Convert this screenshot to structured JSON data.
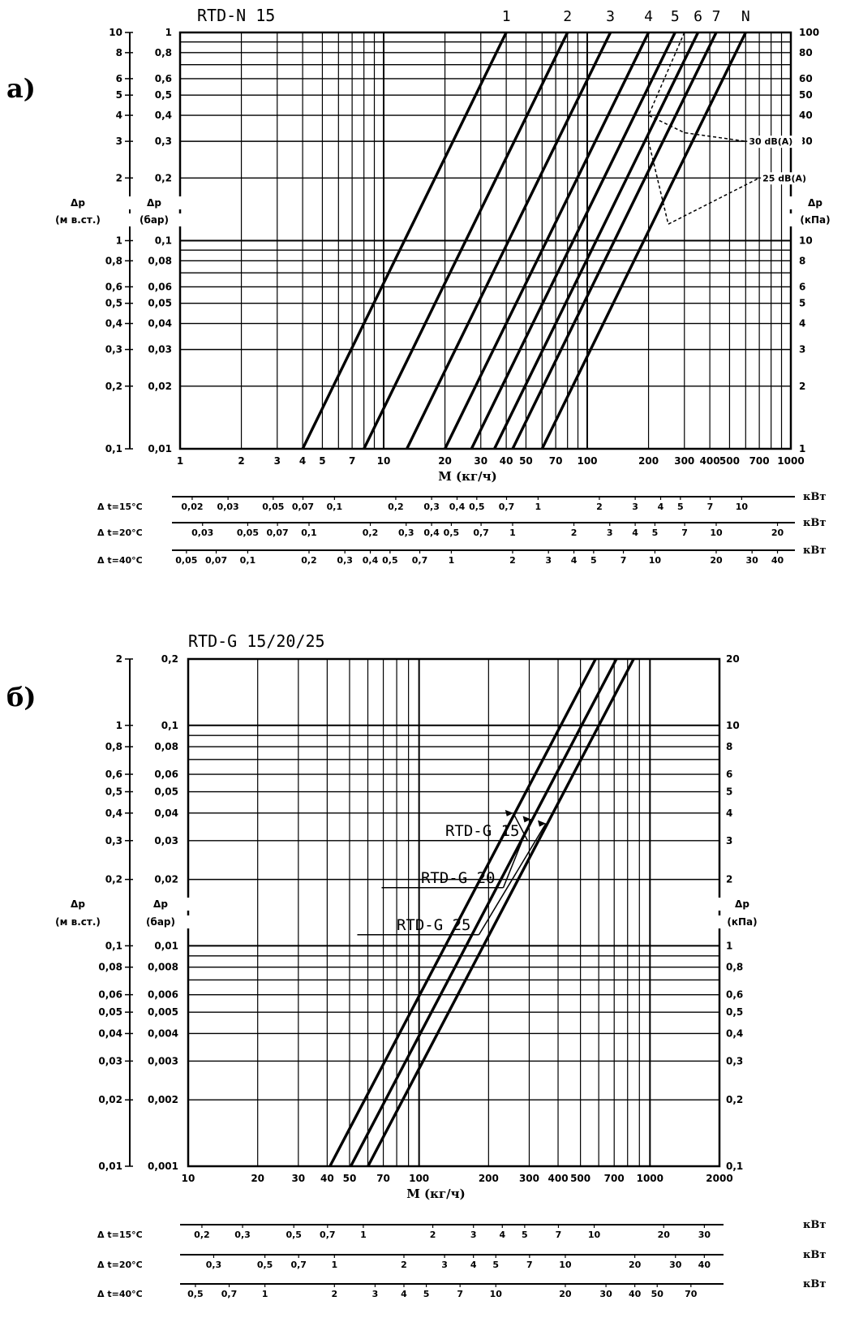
{
  "chart_data": [
    {
      "type": "line",
      "panel_letter": "а)",
      "title": "RTD-N 15",
      "xlabel": "M (кг/ч)",
      "x_scale": "log",
      "y_scale": "log",
      "xlim": [
        1,
        1000
      ],
      "ylim_bar": [
        0.01,
        1
      ],
      "x_ticks": [
        "1",
        "2",
        "3",
        "4",
        "5",
        "7",
        "10",
        "20",
        "30",
        "40",
        "50",
        "70",
        "100",
        "200",
        "300",
        "400",
        "500",
        "700",
        "1000"
      ],
      "y_left_m_label": [
        "Δp",
        "(м в.ст.)"
      ],
      "y_left_m_ticks": [
        "0,1",
        "0,2",
        "0,3",
        "0,4",
        "0,5",
        "0,6",
        "0,8",
        "1",
        "2",
        "3",
        "4",
        "5",
        "6",
        "8",
        "10"
      ],
      "y_left_bar_label": [
        "Δp",
        "(бар)"
      ],
      "y_left_bar_ticks": [
        "0,01",
        "0,02",
        "0,03",
        "0,04",
        "0,05",
        "0,06",
        "0,08",
        "0,1",
        "0,2",
        "0,3",
        "0,4",
        "0,5",
        "0,6",
        "0,8",
        "1"
      ],
      "y_right_label": [
        "Δp",
        "(кПа)"
      ],
      "y_right_ticks": [
        "1",
        "2",
        "3",
        "4",
        "5",
        "6",
        "8",
        "10",
        "20",
        "30",
        "40",
        "50",
        "60",
        "80",
        "100"
      ],
      "series": [
        {
          "name": "1",
          "kv": 0.04
        },
        {
          "name": "2",
          "kv": 0.08
        },
        {
          "name": "3",
          "kv": 0.13
        },
        {
          "name": "4",
          "kv": 0.2
        },
        {
          "name": "5",
          "kv": 0.27
        },
        {
          "name": "6",
          "kv": 0.35
        },
        {
          "name": "7",
          "kv": 0.43
        },
        {
          "name": "N",
          "kv": 0.6
        }
      ],
      "annotations": [
        "30 dB(A)",
        "25 dB(A)"
      ],
      "noise_30": [
        [
          300,
          1.0
        ],
        [
          200,
          0.4
        ],
        [
          300,
          0.33
        ],
        [
          600,
          0.3
        ]
      ],
      "noise_25": [
        [
          200,
          0.3
        ],
        [
          250,
          0.12
        ],
        [
          700,
          0.2
        ]
      ],
      "power_scales": [
        {
          "label": "Δ t=15°C",
          "unit": "кВт",
          "ticks": [
            "0,02",
            "0,03",
            "0,05",
            "0,07",
            "0,1",
            "0,2",
            "0,3",
            "0,4",
            "0,5",
            "0,7",
            "1",
            "2",
            "3",
            "4",
            "5",
            "7",
            "10"
          ],
          "kw_per_kgh": 0.01744
        },
        {
          "label": "Δ t=20°C",
          "unit": "кВт",
          "ticks": [
            "0,03",
            "0,05",
            "0,07",
            "0,1",
            "0,2",
            "0,3",
            "0,4",
            "0,5",
            "0,7",
            "1",
            "2",
            "3",
            "4",
            "5",
            "7",
            "10",
            "20"
          ],
          "kw_per_kgh": 0.02326
        },
        {
          "label": "Δ t=40°C",
          "unit": "кВт",
          "ticks": [
            "0,05",
            "0,07",
            "0,1",
            "0,2",
            "0,3",
            "0,4",
            "0,5",
            "0,7",
            "1",
            "2",
            "3",
            "4",
            "5",
            "7",
            "10",
            "20",
            "30",
            "40"
          ],
          "kw_per_kgh": 0.04652
        }
      ]
    },
    {
      "type": "line",
      "panel_letter": "б)",
      "title": "RTD-G 15/20/25",
      "xlabel": "M (кг/ч)",
      "x_scale": "log",
      "y_scale": "log",
      "xlim": [
        10,
        2000
      ],
      "ylim_bar": [
        0.001,
        0.2
      ],
      "x_ticks": [
        "10",
        "20",
        "30",
        "40",
        "50",
        "70",
        "100",
        "200",
        "300",
        "400",
        "500",
        "700",
        "1000",
        "2000"
      ],
      "y_left_m_label": [
        "Δp",
        "(м в.ст.)"
      ],
      "y_left_m_ticks": [
        "0,01",
        "0,02",
        "0,03",
        "0,04",
        "0,05",
        "0,06",
        "0,08",
        "0,1",
        "0,2",
        "0,3",
        "0,4",
        "0,5",
        "0,6",
        "0,8",
        "1",
        "2"
      ],
      "y_left_bar_label": [
        "Δp",
        "(бар)"
      ],
      "y_left_bar_ticks": [
        "0,001",
        "0,002",
        "0,003",
        "0,004",
        "0,005",
        "0,006",
        "0,008",
        "0,01",
        "0,02",
        "0,03",
        "0,04",
        "0,05",
        "0,06",
        "0,08",
        "0,1",
        "0,2"
      ],
      "y_right_label": [
        "Δp",
        "(кПа)"
      ],
      "y_right_ticks": [
        "0,1",
        "0,2",
        "0,3",
        "0,4",
        "0,5",
        "0,6",
        "0,8",
        "1",
        "2",
        "3",
        "4",
        "5",
        "6",
        "8",
        "10",
        "20"
      ],
      "series": [
        {
          "name": "RTD-G 15",
          "kv": 1.3
        },
        {
          "name": "RTD-G 20",
          "kv": 1.6
        },
        {
          "name": "RTD-G 25",
          "kv": 1.9
        }
      ],
      "power_scales": [
        {
          "label": "Δ t=15°C",
          "unit": "кВт",
          "ticks": [
            "0,2",
            "0,3",
            "0,5",
            "0,7",
            "1",
            "2",
            "3",
            "4",
            "5",
            "7",
            "10",
            "20",
            "30"
          ],
          "kw_per_kgh": 0.01744
        },
        {
          "label": "Δ t=20°C",
          "unit": "кВт",
          "ticks": [
            "0,3",
            "0,5",
            "0,7",
            "1",
            "2",
            "3",
            "4",
            "5",
            "7",
            "10",
            "20",
            "30",
            "40"
          ],
          "kw_per_kgh": 0.02326
        },
        {
          "label": "Δ t=40°C",
          "unit": "кВт",
          "ticks": [
            "0,5",
            "0,7",
            "1",
            "2",
            "3",
            "4",
            "5",
            "7",
            "10",
            "20",
            "30",
            "40",
            "50",
            "70"
          ],
          "kw_per_kgh": 0.04652
        }
      ]
    }
  ]
}
